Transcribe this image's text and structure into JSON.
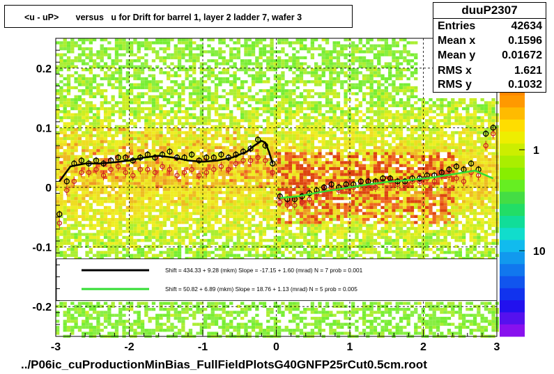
{
  "title": "<u - uP>       versus   u for Drift for barrel 1, layer 2 ladder 7, wafer 3",
  "stats": {
    "name": "duuP2307",
    "rows": [
      {
        "label": "Entries",
        "value": "42634"
      },
      {
        "label": "Mean x",
        "value": "0.1596"
      },
      {
        "label": "Mean y",
        "value": "0.01672"
      },
      {
        "label": "RMS x",
        "value": "1.621"
      },
      {
        "label": "RMS y",
        "value": "0.1032"
      }
    ]
  },
  "footer": "../P06ic_cuProductionMinBias_FullFieldPlotsG40GNFP25rCut0.5cm.root",
  "legend": {
    "entries": [
      {
        "text": "Shift =    434.33 + 9.28 (mkm) Slope =    -17.15 + 1.60 (mrad)  N = 7 prob = 0.001",
        "color": "#000000"
      },
      {
        "text": "Shift =    50.82 + 6.89 (mkm) Slope =    18.76 + 1.13 (mrad)  N = 5 prob = 0.005",
        "color": "#33dd33"
      }
    ]
  },
  "chart_data": {
    "type": "heatmap",
    "title": "<u - uP>       versus   u for Drift for barrel 1, layer 2 ladder 7, wafer 3",
    "xlim": [
      -3,
      3
    ],
    "ylim": [
      -0.25,
      0.25
    ],
    "x_ticks": [
      "-3",
      "-2",
      "-1",
      "0",
      "1",
      "2",
      "3"
    ],
    "y_ticks": [
      "-0.2",
      "-0.1",
      "0",
      "0.1",
      "0.2"
    ],
    "y_tick_values": [
      -0.2,
      -0.1,
      0,
      0.1,
      0.2
    ],
    "colorbar_ticks": [
      "1",
      "10"
    ],
    "colors": {
      "low": "#77ee33",
      "mid": "#eeee22",
      "high": "#ee3311",
      "fit1": "#000000",
      "fit2": "#33dd33",
      "points": "#cc2222"
    },
    "profile_means": {
      "x": [
        -2.95,
        -2.85,
        -2.75,
        -2.65,
        -2.55,
        -2.45,
        -2.35,
        -2.25,
        -2.15,
        -2.05,
        -1.95,
        -1.85,
        -1.75,
        -1.65,
        -1.55,
        -1.45,
        -1.35,
        -1.25,
        -1.15,
        -1.05,
        -0.95,
        -0.85,
        -0.75,
        -0.65,
        -0.55,
        -0.45,
        -0.35,
        -0.25,
        -0.15,
        -0.05,
        0.05,
        0.15,
        0.25,
        0.35,
        0.45,
        0.55,
        0.65,
        0.75,
        0.85,
        0.95,
        1.05,
        1.15,
        1.25,
        1.35,
        1.45,
        1.55,
        1.65,
        1.75,
        1.85,
        1.95,
        2.05,
        2.15,
        2.25,
        2.35,
        2.45,
        2.55,
        2.65,
        2.75,
        2.85,
        2.95
      ],
      "y": [
        -0.045,
        0.01,
        0.04,
        0.045,
        0.04,
        0.045,
        0.04,
        0.045,
        0.05,
        0.05,
        0.045,
        0.05,
        0.055,
        0.05,
        0.055,
        0.06,
        0.05,
        0.05,
        0.055,
        0.045,
        0.05,
        0.05,
        0.055,
        0.05,
        0.055,
        0.06,
        0.065,
        0.08,
        0.07,
        0.04,
        -0.015,
        -0.02,
        -0.02,
        -0.015,
        -0.01,
        -0.005,
        0.0,
        0.005,
        0.0,
        0.005,
        0.005,
        0.01,
        0.01,
        0.01,
        0.015,
        0.015,
        0.01,
        0.01,
        0.015,
        0.015,
        0.02,
        0.02,
        0.025,
        0.03,
        0.035,
        0.03,
        0.04,
        0.03,
        0.09,
        0.1
      ]
    },
    "profile_rms": {
      "x": [
        -2.95,
        -2.85,
        -2.75,
        -2.65,
        -2.55,
        -2.45,
        -2.35,
        -2.25,
        -2.15,
        -2.05,
        -1.95,
        -1.85,
        -1.75,
        -1.65,
        -1.55,
        -1.45,
        -1.35,
        -1.25,
        -1.15,
        -1.05,
        -0.95,
        -0.85,
        -0.75,
        -0.65,
        -0.55,
        -0.45,
        -0.35,
        -0.25,
        -0.15,
        -0.05,
        0.05,
        0.15,
        0.25,
        0.35,
        0.45,
        0.55,
        0.65,
        0.75,
        0.85,
        0.95,
        1.05,
        1.15,
        1.25,
        1.35,
        1.45,
        1.55,
        1.65,
        1.75,
        1.85,
        1.95,
        2.05,
        2.15,
        2.25,
        2.35,
        2.45,
        2.55,
        2.65,
        2.75,
        2.85,
        2.95
      ],
      "y": [
        -0.06,
        -0.005,
        0.01,
        0.025,
        0.025,
        0.03,
        0.02,
        0.03,
        0.035,
        0.025,
        0.02,
        0.03,
        0.03,
        0.025,
        0.035,
        0.03,
        0.02,
        0.025,
        0.03,
        0.02,
        0.025,
        0.03,
        0.035,
        0.03,
        0.04,
        0.045,
        0.045,
        0.05,
        0.045,
        0.025,
        -0.025,
        -0.03,
        -0.03,
        -0.025,
        -0.02,
        -0.01,
        -0.005,
        0.0,
        -0.005,
        0.0,
        0.0,
        0.005,
        0.005,
        0.0,
        0.01,
        0.01,
        0.005,
        0.005,
        0.01,
        0.01,
        0.015,
        0.01,
        0.02,
        0.02,
        0.015,
        0.01,
        0.025,
        0.02,
        0.07,
        0.09
      ]
    },
    "fit_black": {
      "x": [
        -2.95,
        -2.8,
        -2.6,
        -2.4,
        -2.2,
        -2.0,
        -1.8,
        -1.6,
        -1.4,
        -1.2,
        -1.0,
        -0.8,
        -0.6,
        -0.4,
        -0.3,
        -0.2,
        -0.15,
        -0.1,
        -0.05
      ],
      "y": [
        0.01,
        0.035,
        0.04,
        0.04,
        0.042,
        0.045,
        0.05,
        0.053,
        0.05,
        0.045,
        0.043,
        0.045,
        0.05,
        0.06,
        0.07,
        0.078,
        0.075,
        0.06,
        0.04
      ]
    },
    "fit_green": {
      "x": [
        0.05,
        0.3,
        0.6,
        0.9,
        1.2,
        1.5,
        1.8,
        2.1,
        2.4,
        2.7,
        2.95
      ],
      "y": [
        -0.018,
        -0.015,
        -0.008,
        -0.002,
        0.004,
        0.009,
        0.012,
        0.016,
        0.022,
        0.028,
        0.015
      ]
    }
  }
}
